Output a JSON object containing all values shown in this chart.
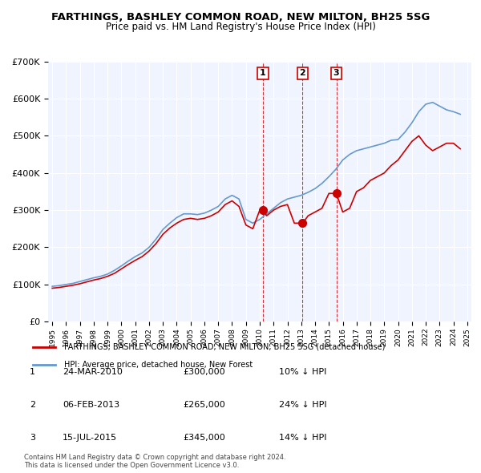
{
  "title": "FARTHINGS, BASHLEY COMMON ROAD, NEW MILTON, BH25 5SG",
  "subtitle": "Price paid vs. HM Land Registry's House Price Index (HPI)",
  "ylabel": "",
  "ylim": [
    0,
    700000
  ],
  "yticks": [
    0,
    100000,
    200000,
    300000,
    400000,
    500000,
    600000,
    700000
  ],
  "ytick_labels": [
    "£0",
    "£100K",
    "£200K",
    "£300K",
    "£400K",
    "£500K",
    "£600K",
    "£700K"
  ],
  "background_color": "#ffffff",
  "plot_bg_color": "#f0f4ff",
  "grid_color": "#ffffff",
  "red_line_color": "#cc0000",
  "blue_line_color": "#6699cc",
  "sale_marker_color": "#cc0000",
  "legend_label_red": "FARTHINGS, BASHLEY COMMON ROAD, NEW MILTON, BH25 5SG (detached house)",
  "legend_label_blue": "HPI: Average price, detached house, New Forest",
  "sales": [
    {
      "label": "1",
      "date": 2010.23,
      "price": 300000,
      "note": "10% ↓ HPI",
      "date_str": "24-MAR-2010"
    },
    {
      "label": "2",
      "date": 2013.09,
      "price": 265000,
      "note": "24% ↓ HPI",
      "date_str": "06-FEB-2013"
    },
    {
      "label": "3",
      "date": 2015.54,
      "price": 345000,
      "note": "14% ↓ HPI",
      "date_str": "15-JUL-2015"
    }
  ],
  "footer": "Contains HM Land Registry data © Crown copyright and database right 2024.\nThis data is licensed under the Open Government Licence v3.0.",
  "hpi_data": {
    "years": [
      1995,
      1995.5,
      1996,
      1996.5,
      1997,
      1997.5,
      1998,
      1998.5,
      1999,
      1999.5,
      2000,
      2000.5,
      2001,
      2001.5,
      2002,
      2002.5,
      2003,
      2003.5,
      2004,
      2004.5,
      2005,
      2005.5,
      2006,
      2006.5,
      2007,
      2007.5,
      2008,
      2008.5,
      2009,
      2009.5,
      2010,
      2010.5,
      2011,
      2011.5,
      2012,
      2012.5,
      2013,
      2013.5,
      2014,
      2014.5,
      2015,
      2015.5,
      2016,
      2016.5,
      2017,
      2017.5,
      2018,
      2018.5,
      2019,
      2019.5,
      2020,
      2020.5,
      2021,
      2021.5,
      2022,
      2022.5,
      2023,
      2023.5,
      2024,
      2024.5
    ],
    "values": [
      95000,
      97000,
      100000,
      103000,
      108000,
      113000,
      118000,
      122000,
      128000,
      138000,
      150000,
      163000,
      175000,
      185000,
      200000,
      222000,
      248000,
      265000,
      280000,
      290000,
      290000,
      288000,
      292000,
      300000,
      310000,
      330000,
      340000,
      330000,
      275000,
      265000,
      275000,
      290000,
      305000,
      320000,
      330000,
      335000,
      340000,
      348000,
      358000,
      372000,
      390000,
      410000,
      435000,
      450000,
      460000,
      465000,
      470000,
      475000,
      480000,
      488000,
      490000,
      510000,
      535000,
      565000,
      585000,
      590000,
      580000,
      570000,
      565000,
      558000
    ]
  },
  "house_data": {
    "years": [
      1995,
      1995.5,
      1996,
      1996.5,
      1997,
      1997.5,
      1998,
      1998.5,
      1999,
      1999.5,
      2000,
      2000.5,
      2001,
      2001.5,
      2002,
      2002.5,
      2003,
      2003.5,
      2004,
      2004.5,
      2005,
      2005.5,
      2006,
      2006.5,
      2007,
      2007.5,
      2008,
      2008.5,
      2009,
      2009.5,
      2010,
      2010.25,
      2010.5,
      2011,
      2011.5,
      2012,
      2012.5,
      2013,
      2013.1,
      2013.5,
      2014,
      2014.5,
      2015,
      2015.54,
      2016,
      2016.5,
      2017,
      2017.5,
      2018,
      2018.5,
      2019,
      2019.5,
      2020,
      2020.5,
      2021,
      2021.5,
      2022,
      2022.5,
      2023,
      2023.5,
      2024,
      2024.5
    ],
    "values": [
      90000,
      92000,
      95000,
      98000,
      102000,
      107000,
      112000,
      116000,
      122000,
      130000,
      142000,
      154000,
      165000,
      175000,
      190000,
      210000,
      235000,
      252000,
      265000,
      275000,
      278000,
      275000,
      278000,
      285000,
      295000,
      315000,
      325000,
      310000,
      260000,
      250000,
      300000,
      300000,
      285000,
      300000,
      310000,
      315000,
      265000,
      265000,
      265000,
      285000,
      295000,
      305000,
      345000,
      345000,
      295000,
      305000,
      350000,
      360000,
      380000,
      390000,
      400000,
      420000,
      435000,
      460000,
      485000,
      500000,
      475000,
      460000,
      470000,
      480000,
      480000,
      465000
    ]
  }
}
